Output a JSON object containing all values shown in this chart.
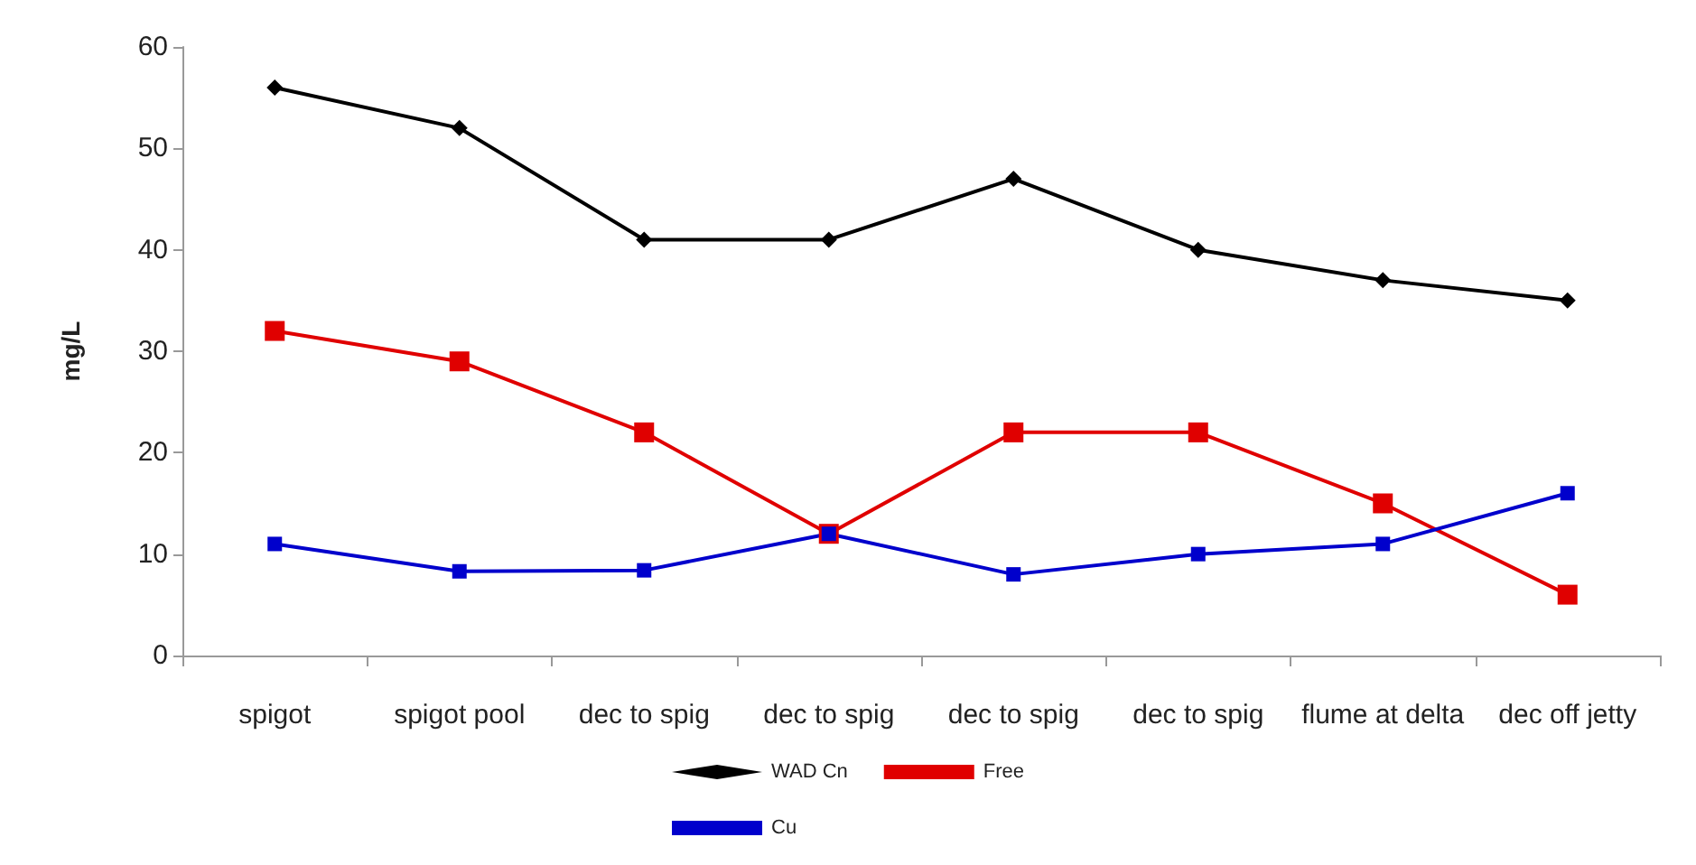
{
  "chart_data": {
    "type": "line",
    "ylabel": "mg/L",
    "categories": [
      "spigot",
      "spigot pool",
      "dec to spig",
      "dec to spig",
      "dec to spig",
      "dec to spig",
      "flume at delta",
      "dec off jetty"
    ],
    "series": [
      {
        "name": "WAD Cn",
        "color": "#000000",
        "marker": "diamond",
        "values": [
          56,
          52,
          41,
          41,
          47,
          40,
          37,
          35
        ]
      },
      {
        "name": "Free",
        "color": "#e00000",
        "marker": "square",
        "values": [
          32,
          29,
          22,
          12,
          22,
          22,
          15,
          6
        ]
      },
      {
        "name": "Cu",
        "color": "#0000cc",
        "marker": "square",
        "values": [
          11,
          8.3,
          8.4,
          12,
          8,
          10,
          11,
          16
        ]
      }
    ],
    "ylim": [
      0,
      60
    ],
    "yticks": [
      0,
      10,
      20,
      30,
      40,
      50,
      60
    ],
    "grid": false,
    "legend": "bottom"
  }
}
